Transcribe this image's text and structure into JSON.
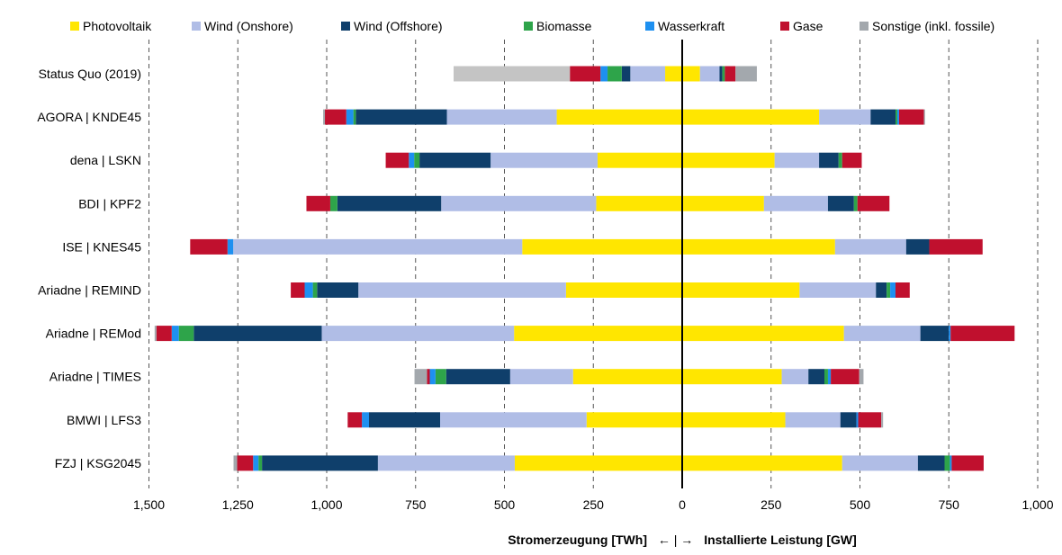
{
  "chart_data": {
    "type": "bar",
    "orientation": "horizontal",
    "stacked": "diverging",
    "categories": [
      "Status Quo (2019)",
      "AGORA | KNDE45",
      "dena | LSKN",
      "BDI | KPF2",
      "ISE | KNES45",
      "Ariadne | REMIND",
      "Ariadne | REMod",
      "Ariadne | TIMES",
      "BMWI | LFS3",
      "FZJ | KSG2045"
    ],
    "left_side": {
      "label": "Stromerzeugung [TWh]",
      "series": [
        {
          "name": "Photovoltaik",
          "values": [
            48,
            353,
            238,
            242,
            450,
            327,
            473,
            307,
            269,
            471
          ]
        },
        {
          "name": "Wind (Onshore)",
          "values": [
            98,
            309,
            301,
            436,
            813,
            584,
            541,
            177,
            412,
            385
          ]
        },
        {
          "name": "Wind (Offshore)",
          "values": [
            24,
            256,
            200,
            292,
            0,
            116,
            360,
            180,
            200,
            326
          ]
        },
        {
          "name": "Biomasse",
          "values": [
            40,
            7,
            15,
            20,
            0,
            12,
            42,
            30,
            0,
            10
          ]
        },
        {
          "name": "Wasserkraft",
          "values": [
            20,
            20,
            15,
            0,
            16,
            23,
            20,
            16,
            20,
            15
          ]
        },
        {
          "name": "Gase",
          "values": [
            86,
            60,
            65,
            67,
            105,
            39,
            43,
            8,
            40,
            45
          ]
        },
        {
          "name": "Sonstige (inkl. fossile)",
          "values": [
            327,
            5,
            0,
            0,
            0,
            0,
            5,
            35,
            0,
            10
          ]
        }
      ]
    },
    "right_side": {
      "label": "Installierte Leistung [GW]",
      "series": [
        {
          "name": "Photovoltaik",
          "values": [
            50,
            385,
            260,
            230,
            430,
            330,
            455,
            280,
            290,
            450
          ]
        },
        {
          "name": "Wind (Onshore)",
          "values": [
            55,
            145,
            125,
            180,
            200,
            215,
            215,
            75,
            155,
            213
          ]
        },
        {
          "name": "Wind (Offshore)",
          "values": [
            8,
            70,
            55,
            73,
            65,
            30,
            80,
            45,
            45,
            75
          ]
        },
        {
          "name": "Biomasse",
          "values": [
            7,
            5,
            10,
            10,
            0,
            10,
            0,
            10,
            0,
            15
          ]
        },
        {
          "name": "Wasserkraft",
          "values": [
            0,
            5,
            0,
            0,
            0,
            15,
            5,
            8,
            5,
            5
          ]
        },
        {
          "name": "Gase",
          "values": [
            30,
            70,
            55,
            90,
            150,
            40,
            180,
            80,
            65,
            90
          ]
        },
        {
          "name": "Sonstige (inkl. fossile)",
          "values": [
            60,
            3,
            0,
            0,
            0,
            0,
            0,
            12,
            5,
            0
          ]
        }
      ]
    },
    "colors": {
      "Photovoltaik": "#ffe600",
      "Wind (Onshore)": "#b0bde6",
      "Wind (Offshore)": "#0f3f6b",
      "Biomasse": "#2ea44a",
      "Wasserkraft": "#1e90f0",
      "Gase": "#c0102e",
      "Sonstige (inkl. fossile)": "#a3a8ad",
      "StatusQuoSonstigeLeft": "#c4c4c4"
    },
    "xlim": [
      -1500,
      1000
    ],
    "xticks": [
      -1500,
      -1250,
      -1000,
      -750,
      -500,
      -250,
      0,
      250,
      500,
      750,
      1000
    ],
    "xtick_labels": [
      "1,500",
      "1,250",
      "1,000",
      "750",
      "500",
      "250",
      "0",
      "250",
      "500",
      "750",
      "1,000"
    ],
    "grid": "vertical dashed",
    "legend_position": "top",
    "xlabel_left": "Stromerzeugung [TWh]",
    "xlabel_sep": "←  |  →",
    "xlabel_right": "Installierte Leistung [GW]"
  }
}
